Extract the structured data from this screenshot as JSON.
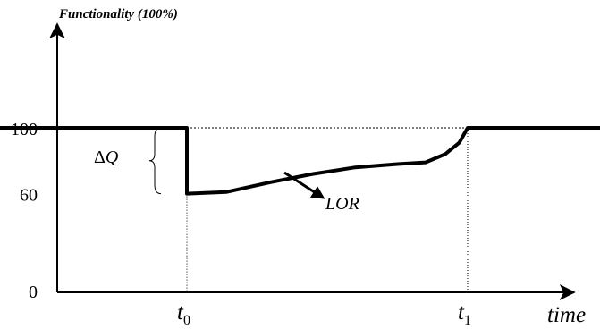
{
  "chart_data": {
    "type": "line",
    "ylabel": "Functionality (100%)",
    "xlabel": "time",
    "ylim": [
      0,
      100
    ],
    "yticks": [
      {
        "value": 0,
        "label": "0"
      },
      {
        "value": 60,
        "label": "60"
      },
      {
        "value": 100,
        "label": "100"
      }
    ],
    "xticks": [
      {
        "value": 0,
        "label": "t",
        "sub": "0"
      },
      {
        "value": 1,
        "label": "t",
        "sub": "1"
      }
    ],
    "series": [
      {
        "values": [
          [
            -0.98,
            100
          ],
          [
            0,
            100
          ],
          [
            0,
            60
          ],
          [
            0.14,
            61
          ],
          [
            0.3,
            67
          ],
          [
            0.45,
            72
          ],
          [
            0.6,
            76
          ],
          [
            0.75,
            78
          ],
          [
            0.85,
            79
          ],
          [
            0.92,
            84
          ],
          [
            0.97,
            91
          ],
          [
            1,
            100
          ],
          [
            1.67,
            100
          ]
        ]
      }
    ],
    "annotations": {
      "delta_q": {
        "symbol": "Δ",
        "letter": "Q",
        "from": 60,
        "to": 100
      },
      "lor": {
        "label": "LOR"
      }
    },
    "reference_line": {
      "y": 100,
      "style": "dotted"
    },
    "grid": false
  }
}
